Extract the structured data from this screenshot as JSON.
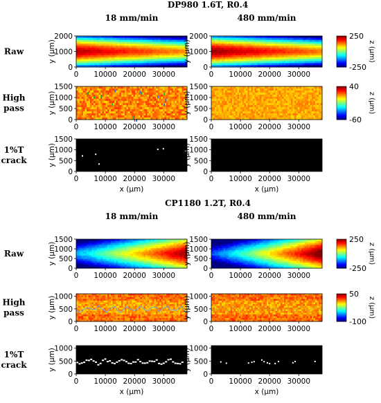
{
  "chart_data": [
    {
      "title": "DP980 1.6T, R0.4",
      "columns": [
        "18 mm/min",
        "480 mm/min"
      ],
      "rows": [
        {
          "label": "Raw",
          "type": "heatmap",
          "ylabel": "y (μm)",
          "x_ticks": [
            0,
            10000,
            20000,
            30000
          ],
          "y_ticks": [
            0,
            1000,
            2000
          ],
          "xlim": [
            0,
            38000
          ],
          "ylim": [
            0,
            2000
          ],
          "colorbar": {
            "label": "z (μm)",
            "min": -250,
            "max": 250,
            "ticks": [
              250,
              -250
            ]
          },
          "pattern": "raw_left"
        },
        {
          "label": "High\npass",
          "type": "heatmap",
          "ylabel": "y (μm)",
          "x_ticks": [
            0,
            10000,
            20000,
            30000
          ],
          "y_ticks": [
            0,
            500,
            1000,
            1500
          ],
          "xlim": [
            0,
            38000
          ],
          "ylim": [
            0,
            1500
          ],
          "colorbar": {
            "label": "z (μm)",
            "min": -60,
            "max": 40,
            "ticks": [
              40,
              -60
            ]
          },
          "pattern": "highpass_uniform"
        },
        {
          "label": "1%T\ncrack",
          "type": "heatmap",
          "ylabel": "y (μm)",
          "xlabel": "x (μm)",
          "x_ticks": [
            0,
            10000,
            20000,
            30000
          ],
          "y_ticks": [
            0,
            500,
            1000,
            1500
          ],
          "xlim": [
            0,
            38000
          ],
          "ylim": [
            0,
            1500
          ],
          "pattern": "crack_sparse"
        }
      ]
    },
    {
      "title": "CP1180 1.2T, R0.4",
      "columns": [
        "18 mm/min",
        "480 mm/min"
      ],
      "rows": [
        {
          "label": "Raw",
          "type": "heatmap",
          "ylabel": "y (μm)",
          "x_ticks": [
            0,
            10000,
            20000,
            30000
          ],
          "y_ticks": [
            0,
            500,
            1000,
            1500
          ],
          "xlim": [
            0,
            38000
          ],
          "ylim": [
            0,
            1500
          ],
          "colorbar": {
            "label": "z (μm)",
            "min": -250,
            "max": 250,
            "ticks": [
              250,
              -250
            ]
          },
          "pattern": "raw_right"
        },
        {
          "label": "High\npass",
          "type": "heatmap",
          "ylabel": "y (μm)",
          "x_ticks": [
            0,
            10000,
            20000,
            30000
          ],
          "y_ticks": [
            0,
            500,
            1000
          ],
          "xlim": [
            0,
            38000
          ],
          "ylim": [
            0,
            1100
          ],
          "colorbar": {
            "label": "z (μm)",
            "min": -100,
            "max": 50,
            "ticks": [
              50,
              -100
            ]
          },
          "pattern": "highpass_band"
        },
        {
          "label": "1%T\ncrack",
          "type": "heatmap",
          "ylabel": "y (μm)",
          "xlabel": "x (μm)",
          "x_ticks": [
            0,
            10000,
            20000,
            30000
          ],
          "y_ticks": [
            0,
            500,
            1000
          ],
          "xlim": [
            0,
            38000
          ],
          "ylim": [
            0,
            1100
          ],
          "pattern": "crack_band"
        }
      ]
    }
  ]
}
